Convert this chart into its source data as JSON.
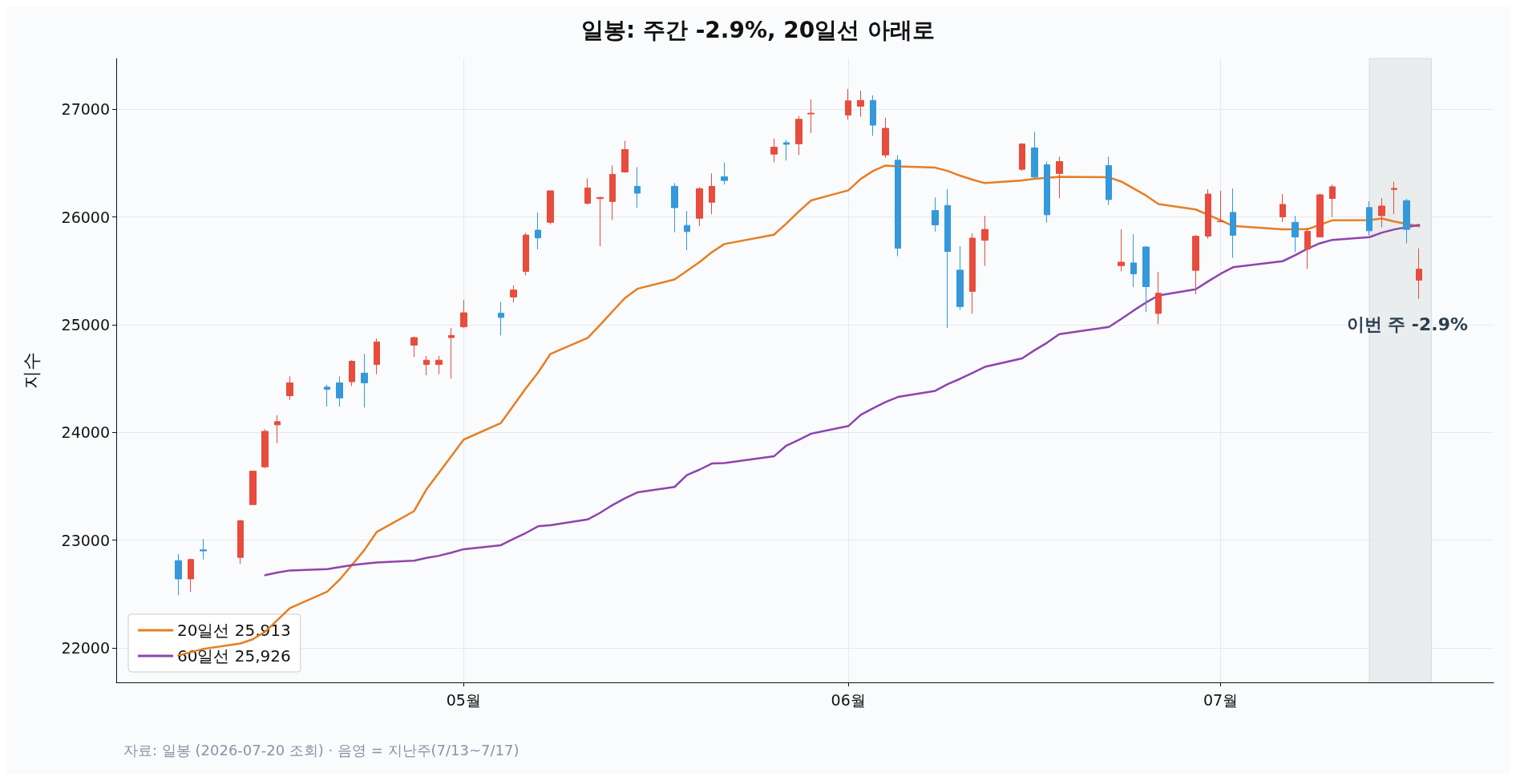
{
  "chart_data": {
    "type": "candlestick",
    "title": "일봉: 주간 -2.9%, 20일선 아래로",
    "ylabel": "지수",
    "x": [
      "2026-04-08",
      "2026-04-09",
      "2026-04-10",
      "2026-04-13",
      "2026-04-14",
      "2026-04-15",
      "2026-04-16",
      "2026-04-17",
      "2026-04-20",
      "2026-04-21",
      "2026-04-22",
      "2026-04-23",
      "2026-04-24",
      "2026-04-27",
      "2026-04-28",
      "2026-04-29",
      "2026-04-30",
      "2026-05-01",
      "2026-05-04",
      "2026-05-05",
      "2026-05-06",
      "2026-05-07",
      "2026-05-08",
      "2026-05-11",
      "2026-05-12",
      "2026-05-13",
      "2026-05-14",
      "2026-05-15",
      "2026-05-18",
      "2026-05-19",
      "2026-05-20",
      "2026-05-21",
      "2026-05-22",
      "2026-05-26",
      "2026-05-27",
      "2026-05-28",
      "2026-05-29",
      "2026-06-01",
      "2026-06-02",
      "2026-06-03",
      "2026-06-04",
      "2026-06-05",
      "2026-06-08",
      "2026-06-09",
      "2026-06-10",
      "2026-06-11",
      "2026-06-12",
      "2026-06-15",
      "2026-06-16",
      "2026-06-17",
      "2026-06-18",
      "2026-06-22",
      "2026-06-23",
      "2026-06-24",
      "2026-06-25",
      "2026-06-26",
      "2026-06-29",
      "2026-06-30",
      "2026-07-01",
      "2026-07-02",
      "2026-07-06",
      "2026-07-07",
      "2026-07-08",
      "2026-07-09",
      "2026-07-10",
      "2026-07-13",
      "2026-07-14",
      "2026-07-15",
      "2026-07-16",
      "2026-07-17"
    ],
    "ohlc": [
      [
        22810,
        22870,
        22490,
        22640
      ],
      [
        22640,
        22830,
        22520,
        22820
      ],
      [
        22910,
        23010,
        22820,
        22900
      ],
      [
        22840,
        23190,
        22780,
        23180
      ],
      [
        23330,
        23640,
        23330,
        23640
      ],
      [
        23680,
        24030,
        23670,
        24010
      ],
      [
        24070,
        24160,
        23900,
        24100
      ],
      [
        24340,
        24520,
        24300,
        24460
      ],
      [
        24420,
        24440,
        24240,
        24400
      ],
      [
        24460,
        24520,
        24240,
        24320
      ],
      [
        24470,
        24670,
        24430,
        24660
      ],
      [
        24550,
        24730,
        24230,
        24460
      ],
      [
        24630,
        24870,
        24540,
        24840
      ],
      [
        24810,
        24890,
        24700,
        24880
      ],
      [
        24630,
        24710,
        24530,
        24670
      ],
      [
        24630,
        24710,
        24540,
        24670
      ],
      [
        24880,
        24970,
        24500,
        24900
      ],
      [
        24980,
        25230,
        24970,
        25110
      ],
      [
        25106,
        25210,
        24900,
        25067
      ],
      [
        25257,
        25365,
        25205,
        25321
      ],
      [
        25494,
        25852,
        25457,
        25832
      ],
      [
        25877,
        26040,
        25700,
        25805
      ],
      [
        25950,
        26247,
        25930,
        26242
      ],
      [
        26126,
        26358,
        26116,
        26269
      ],
      [
        26170,
        26188,
        25728,
        26180
      ],
      [
        26143,
        26477,
        25973,
        26395
      ],
      [
        26417,
        26706,
        26410,
        26625
      ],
      [
        26284,
        26462,
        26086,
        26220
      ],
      [
        26284,
        26314,
        25857,
        26086
      ],
      [
        25921,
        26054,
        25691,
        25864
      ],
      [
        25988,
        26277,
        25914,
        26262
      ],
      [
        26136,
        26403,
        26025,
        26284
      ],
      [
        26373,
        26506,
        26301,
        26338
      ],
      [
        26583,
        26728,
        26506,
        26647
      ],
      [
        26689,
        26714,
        26523,
        26674
      ],
      [
        26679,
        26936,
        26575,
        26906
      ],
      [
        26956,
        27091,
        26778,
        26963
      ],
      [
        26946,
        27188,
        26903,
        27077
      ],
      [
        27027,
        27173,
        26931,
        27081
      ],
      [
        27081,
        27128,
        26753,
        26852
      ],
      [
        26575,
        26921,
        26548,
        26822
      ],
      [
        26526,
        26573,
        25635,
        25709
      ],
      [
        26059,
        26180,
        25864,
        25926
      ],
      [
        26106,
        26259,
        24968,
        25679
      ],
      [
        25506,
        25728,
        25136,
        25168
      ],
      [
        25309,
        25847,
        25101,
        25803
      ],
      [
        25783,
        26010,
        25546,
        25884
      ],
      [
        26442,
        26684,
        26427,
        26677
      ],
      [
        26640,
        26790,
        26358,
        26370
      ],
      [
        26484,
        26514,
        25946,
        26020
      ],
      [
        26403,
        26558,
        26173,
        26514
      ],
      [
        26477,
        26558,
        26111,
        26161
      ],
      [
        25548,
        25884,
        25494,
        25580
      ],
      [
        25573,
        25840,
        25349,
        25472
      ],
      [
        25721,
        25728,
        25116,
        25353
      ],
      [
        25104,
        25491,
        25005,
        25292
      ],
      [
        25504,
        25832,
        25282,
        25820
      ],
      [
        25822,
        26257,
        25798,
        26212
      ],
      [
        25955,
        26242,
        25951,
        25960
      ],
      [
        26042,
        26264,
        25620,
        25830
      ],
      [
        26000,
        26213,
        25953,
        26116
      ],
      [
        25950,
        26010,
        25673,
        25814
      ],
      [
        25701,
        25899,
        25517,
        25866
      ],
      [
        25814,
        26218,
        25810,
        26205
      ],
      [
        26171,
        26300,
        25998,
        26280
      ],
      [
        26087,
        26146,
        25827,
        25871
      ],
      [
        26012,
        26176,
        25903,
        26101
      ],
      [
        26255,
        26327,
        26027,
        26265
      ],
      [
        26151,
        26168,
        25755,
        25884
      ],
      [
        25413,
        25708,
        25240,
        25515
      ]
    ],
    "colors": [
      "#3498db",
      "#e74c3c",
      "#3498db",
      "#e74c3c",
      "#e74c3c",
      "#e74c3c",
      "#e74c3c",
      "#e74c3c",
      "#3498db",
      "#3498db",
      "#e74c3c",
      "#3498db",
      "#e74c3c",
      "#e74c3c",
      "#e74c3c",
      "#e74c3c",
      "#e74c3c",
      "#e74c3c",
      "#3498db",
      "#e74c3c",
      "#e74c3c",
      "#3498db",
      "#e74c3c",
      "#e74c3c",
      "#e74c3c",
      "#e74c3c",
      "#e74c3c",
      "#3498db",
      "#3498db",
      "#3498db",
      "#e74c3c",
      "#e74c3c",
      "#3498db",
      "#e74c3c",
      "#3498db",
      "#e74c3c",
      "#e74c3c",
      "#e74c3c",
      "#e74c3c",
      "#3498db",
      "#e74c3c",
      "#3498db",
      "#3498db",
      "#3498db",
      "#3498db",
      "#e74c3c",
      "#e74c3c",
      "#e74c3c",
      "#3498db",
      "#3498db",
      "#e74c3c",
      "#3498db",
      "#e74c3c",
      "#3498db",
      "#3498db",
      "#e74c3c",
      "#e74c3c",
      "#e74c3c",
      "#e74c3c",
      "#3498db",
      "#e74c3c",
      "#3498db",
      "#e74c3c",
      "#e74c3c",
      "#e74c3c",
      "#3498db",
      "#e74c3c",
      "#e74c3c",
      "#3498db",
      "#e74c3c"
    ],
    "series": [
      {
        "type": "line",
        "name": "20일선 25,913",
        "color": "#e67e22",
        "values": [
          21930,
          21960,
          21990,
          22041,
          22080,
          22150,
          22260,
          22370,
          22522,
          22633,
          22770,
          22909,
          23077,
          23269,
          23471,
          23624,
          23779,
          23933,
          24087,
          24247,
          24408,
          24556,
          24729,
          24877,
          24998,
          25124,
          25247,
          25333,
          25420,
          25499,
          25580,
          25672,
          25748,
          25835,
          25938,
          26049,
          26153,
          26247,
          26353,
          26427,
          26477,
          26469,
          26457,
          26427,
          26383,
          26346,
          26314,
          26338,
          26353,
          26363,
          26373,
          26368,
          26328,
          26264,
          26198,
          26119,
          26069,
          26020,
          25970,
          25916,
          25884,
          null,
          25886,
          null,
          25968,
          25970,
          25985,
          25958,
          null,
          25913
        ]
      },
      {
        "type": "line",
        "name": "60일선 25,926",
        "color": "#8e44ad",
        "x": [
          "2026-04-15",
          "2026-04-16",
          "2026-04-17",
          "2026-04-20",
          "2026-04-21",
          "2026-04-22",
          "2026-04-23",
          "2026-04-24",
          "2026-04-27",
          "2026-04-28",
          "2026-04-29",
          "2026-04-30",
          "2026-05-01",
          "2026-05-04",
          "2026-05-05",
          "2026-05-06",
          "2026-05-07",
          "2026-05-08",
          "2026-05-11",
          "2026-05-12",
          "2026-05-13",
          "2026-05-14",
          "2026-05-15",
          "2026-05-18",
          "2026-05-19",
          "2026-05-20",
          "2026-05-21",
          "2026-05-22",
          "2026-05-26",
          "2026-05-27",
          "2026-05-28",
          "2026-05-29",
          "2026-06-01",
          "2026-06-02",
          "2026-06-03",
          "2026-06-04",
          "2026-06-05",
          "2026-06-08",
          "2026-06-09",
          "2026-06-10",
          "2026-06-11",
          "2026-06-12",
          "2026-06-15",
          "2026-06-16",
          "2026-06-17",
          "2026-06-18",
          "2026-06-22",
          "2026-06-23",
          "2026-06-24",
          "2026-06-25",
          "2026-06-26",
          "2026-06-29",
          "2026-06-30",
          "2026-07-01",
          "2026-07-02",
          "2026-07-06",
          "2026-07-07",
          "2026-07-08",
          "2026-07-09",
          "2026-07-10",
          "2026-07-13",
          "2026-07-14",
          "2026-07-15",
          "2026-07-16",
          "2026-07-17"
        ],
        "values": [
          22675,
          22699,
          22719,
          22731,
          22749,
          22768,
          22781,
          22793,
          22810,
          22835,
          22855,
          22884,
          22916,
          22953,
          23012,
          23066,
          23129,
          23138,
          23192,
          23254,
          23326,
          23389,
          23443,
          23494,
          23605,
          23654,
          23711,
          23716,
          23778,
          23877,
          23931,
          23988,
          24059,
          24163,
          24225,
          24282,
          24329,
          24386,
          24448,
          24497,
          24551,
          24608,
          24687,
          24762,
          24831,
          24912,
          24979,
          25053,
          25132,
          25206,
          25271,
          25328,
          25402,
          25472,
          25533,
          25589,
          25644,
          25705,
          25755,
          25787,
          25812,
          25854,
          25884,
          null,
          25926
        ]
      }
    ],
    "xlim": [
      "2026-04-03",
      "2026-07-23"
    ],
    "xticks": [
      {
        "value": "2026-05-01",
        "label": "05월"
      },
      {
        "value": "2026-06-01",
        "label": "06월"
      },
      {
        "value": "2026-07-01",
        "label": "07월"
      }
    ],
    "ylim": [
      21680,
      27470
    ],
    "yticks": [
      22000,
      23000,
      24000,
      25000,
      26000,
      27000
    ],
    "bands": [
      {
        "axis": "x",
        "from": "2026-07-13",
        "to": "2026-07-18",
        "color": "#e9eded"
      }
    ],
    "annotations": [
      "이번 주 -2.9%",
      "자료: 일봉 (2026-07-20 조회) · 음영 = 지난주(7/13~7/17)"
    ],
    "grid": true,
    "legend": "bottom left"
  }
}
